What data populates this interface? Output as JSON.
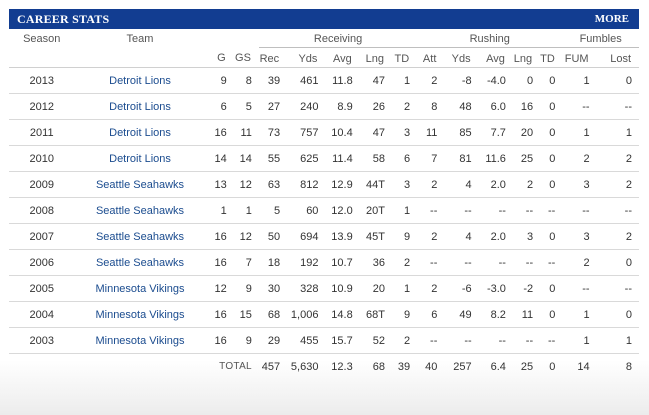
{
  "header": {
    "title": "CAREER STATS",
    "more": "MORE"
  },
  "groups": {
    "receiving": "Receiving",
    "rushing": "Rushing",
    "fumbles": "Fumbles"
  },
  "columns": {
    "season": "Season",
    "team": "Team",
    "g": "G",
    "gs": "GS",
    "rec": "Rec",
    "rec_yds": "Yds",
    "rec_avg": "Avg",
    "rec_lng": "Lng",
    "rec_td": "TD",
    "att": "Att",
    "rush_yds": "Yds",
    "rush_avg": "Avg",
    "rush_lng": "Lng",
    "rush_td": "TD",
    "fum": "FUM",
    "lost": "Lost"
  },
  "rows": [
    [
      "2013",
      "Detroit Lions",
      "9",
      "8",
      "39",
      "461",
      "11.8",
      "47",
      "1",
      "2",
      "-8",
      "-4.0",
      "0",
      "0",
      "1",
      "0"
    ],
    [
      "2012",
      "Detroit Lions",
      "6",
      "5",
      "27",
      "240",
      "8.9",
      "26",
      "2",
      "8",
      "48",
      "6.0",
      "16",
      "0",
      "--",
      "--"
    ],
    [
      "2011",
      "Detroit Lions",
      "16",
      "11",
      "73",
      "757",
      "10.4",
      "47",
      "3",
      "11",
      "85",
      "7.7",
      "20",
      "0",
      "1",
      "1"
    ],
    [
      "2010",
      "Detroit Lions",
      "14",
      "14",
      "55",
      "625",
      "11.4",
      "58",
      "6",
      "7",
      "81",
      "11.6",
      "25",
      "0",
      "2",
      "2"
    ],
    [
      "2009",
      "Seattle Seahawks",
      "13",
      "12",
      "63",
      "812",
      "12.9",
      "44T",
      "3",
      "2",
      "4",
      "2.0",
      "2",
      "0",
      "3",
      "2"
    ],
    [
      "2008",
      "Seattle Seahawks",
      "1",
      "1",
      "5",
      "60",
      "12.0",
      "20T",
      "1",
      "--",
      "--",
      "--",
      "--",
      "--",
      "--",
      "--"
    ],
    [
      "2007",
      "Seattle Seahawks",
      "16",
      "12",
      "50",
      "694",
      "13.9",
      "45T",
      "9",
      "2",
      "4",
      "2.0",
      "3",
      "0",
      "3",
      "2"
    ],
    [
      "2006",
      "Seattle Seahawks",
      "16",
      "7",
      "18",
      "192",
      "10.7",
      "36",
      "2",
      "--",
      "--",
      "--",
      "--",
      "--",
      "2",
      "0"
    ],
    [
      "2005",
      "Minnesota Vikings",
      "12",
      "9",
      "30",
      "328",
      "10.9",
      "20",
      "1",
      "2",
      "-6",
      "-3.0",
      "-2",
      "0",
      "--",
      "--"
    ],
    [
      "2004",
      "Minnesota Vikings",
      "16",
      "15",
      "68",
      "1,006",
      "14.8",
      "68T",
      "9",
      "6",
      "49",
      "8.2",
      "11",
      "0",
      "1",
      "0"
    ],
    [
      "2003",
      "Minnesota Vikings",
      "16",
      "9",
      "29",
      "455",
      "15.7",
      "52",
      "2",
      "--",
      "--",
      "--",
      "--",
      "--",
      "1",
      "1"
    ]
  ],
  "totals": {
    "label": "TOTAL",
    "values": [
      "457",
      "5,630",
      "12.3",
      "68",
      "39",
      "40",
      "257",
      "6.4",
      "25",
      "0",
      "14",
      "8"
    ]
  }
}
